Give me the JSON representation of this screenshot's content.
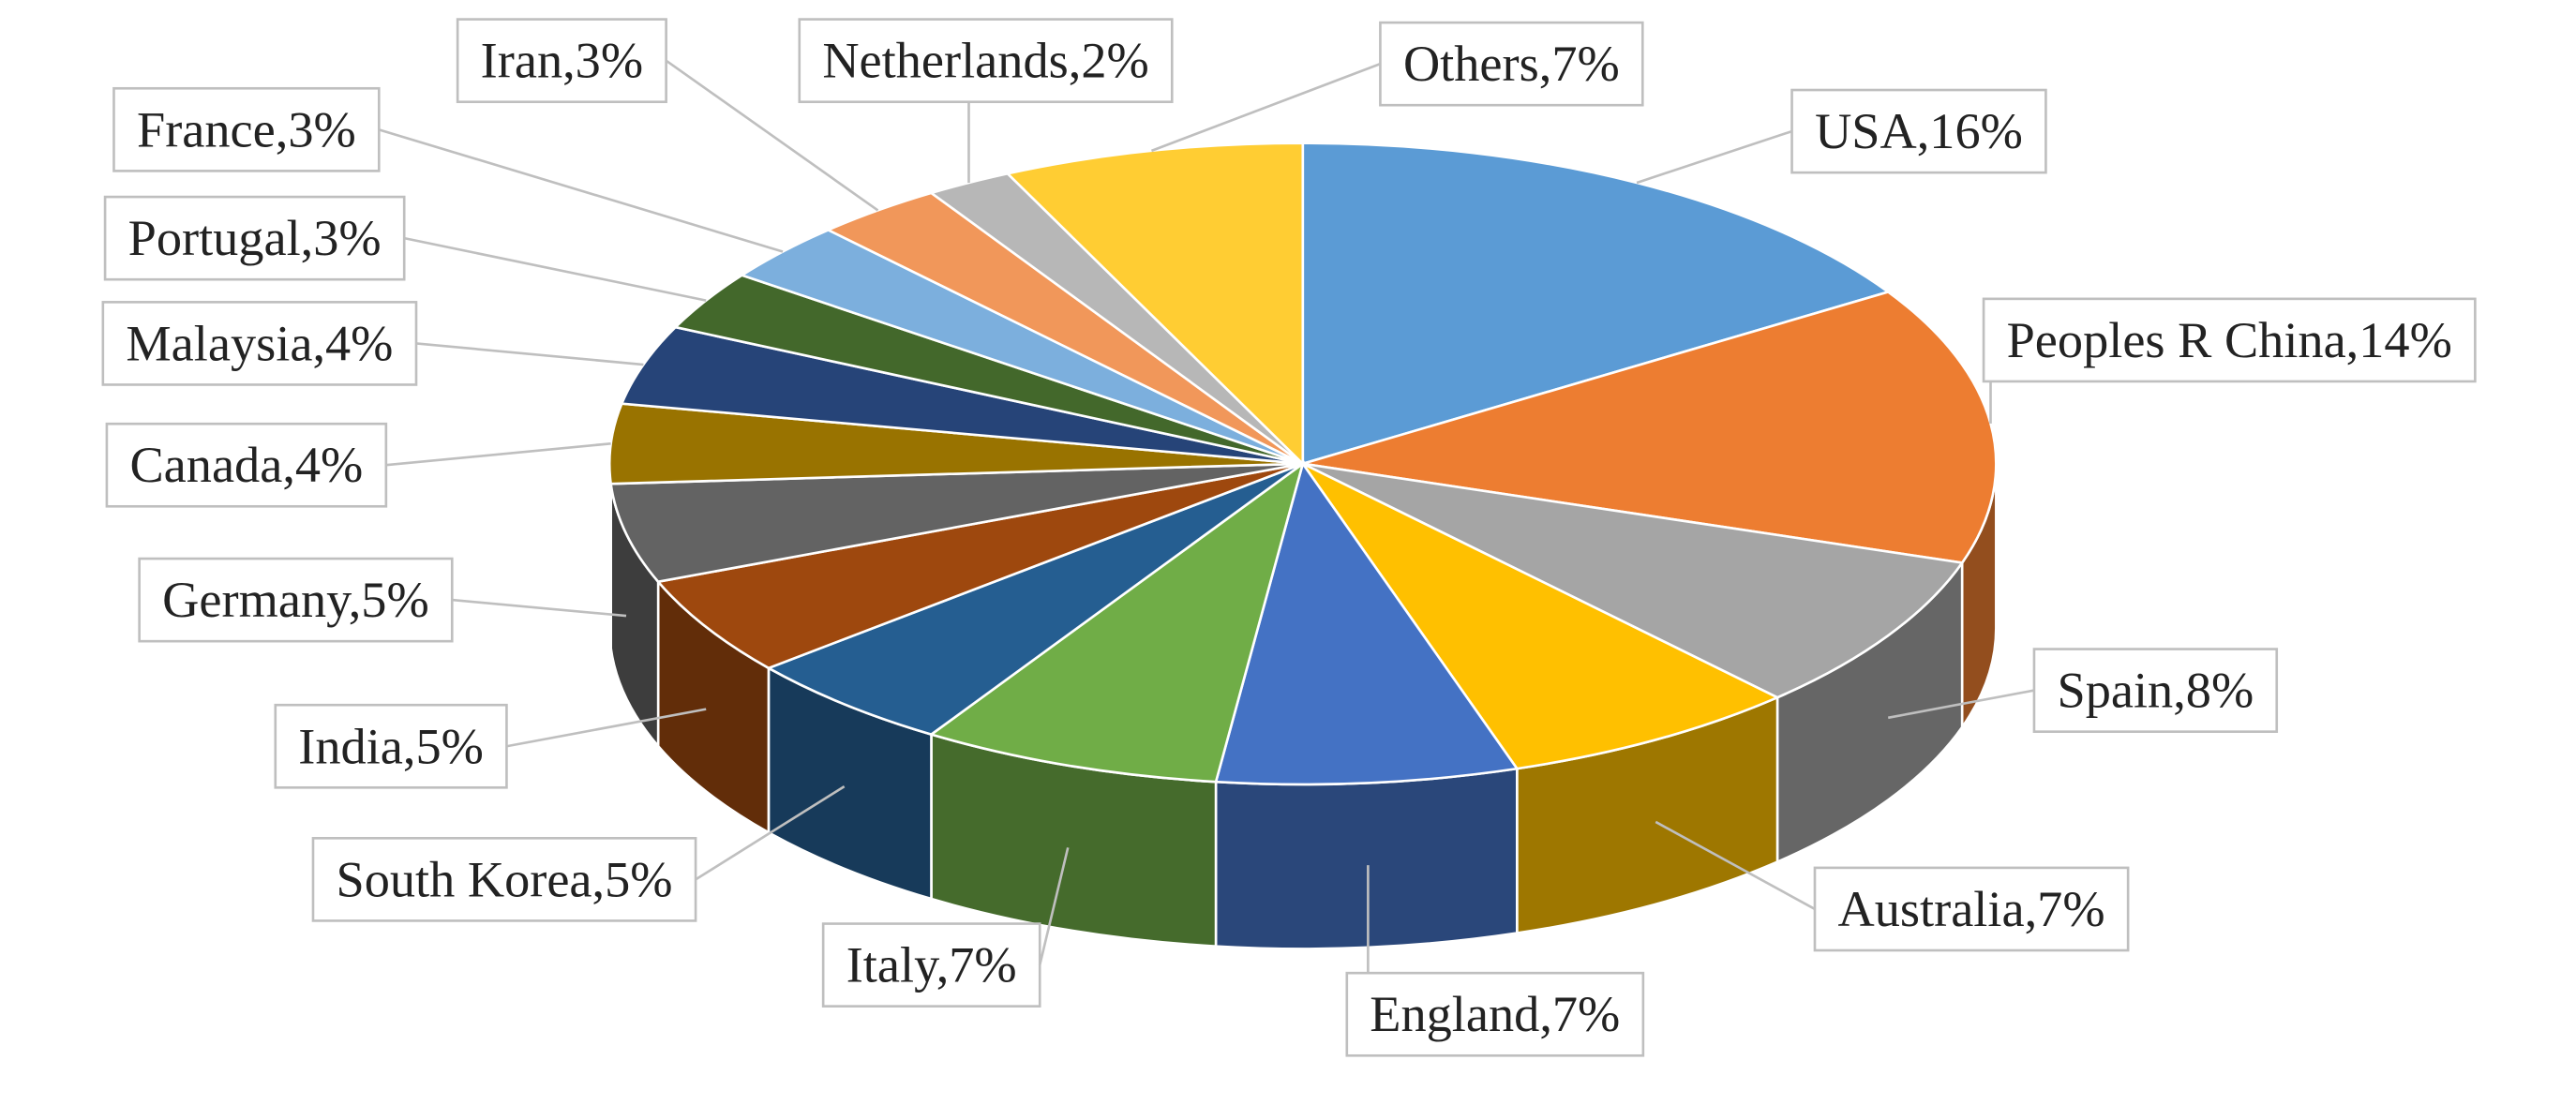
{
  "chart_data": {
    "type": "pie3d",
    "values": [
      16,
      14,
      8,
      7,
      7,
      7,
      5,
      5,
      5,
      4,
      4,
      3,
      3,
      3,
      2,
      7
    ],
    "value_labels": [
      "USA,16%",
      "Peoples R China,14%",
      "Spain,8%",
      "Australia,7%",
      "England,7%",
      "Italy,7%",
      "South Korea,5%",
      "India,5%",
      "Germany,5%",
      "Canada,4%",
      "Malaysia,4%",
      "Portugal,3%",
      "France,3%",
      "Iran,3%",
      "Netherlands,2%",
      "Others,7%"
    ],
    "colors": [
      "#5b9bd5",
      "#ed7d31",
      "#a5a5a5",
      "#ffc000",
      "#4472c4",
      "#70ad47",
      "#255e91",
      "#9e480e",
      "#636363",
      "#997300",
      "#264478",
      "#43682b",
      "#7cafdd",
      "#f1975a",
      "#b7b7b7",
      "#ffcd33"
    ]
  }
}
